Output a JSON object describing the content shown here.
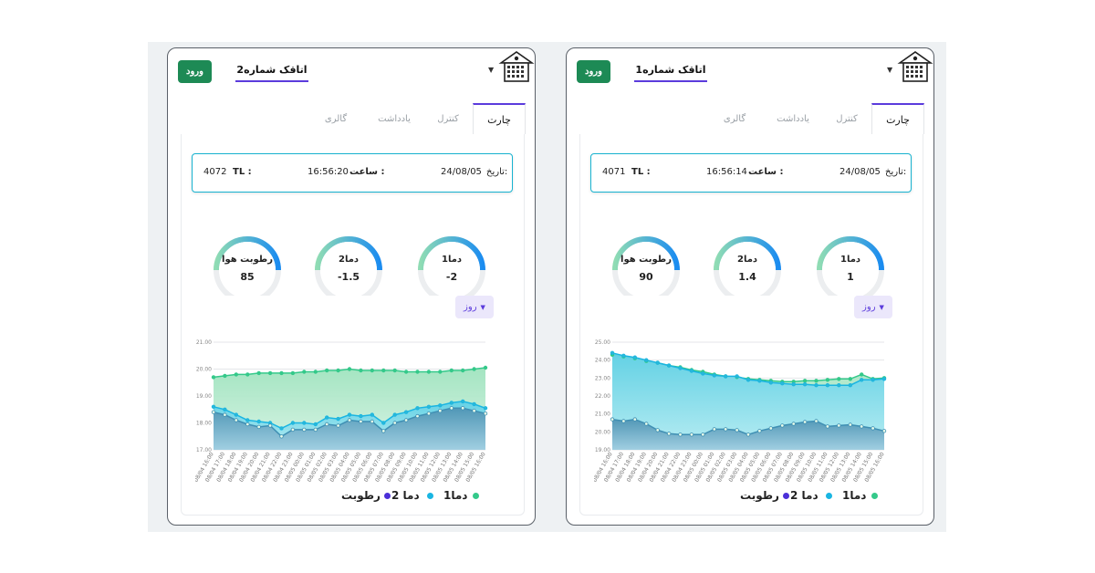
{
  "colors": {
    "brand_green": "#1d8a55",
    "accent_purple": "#5b3bdc",
    "info_border": "#17b3d0",
    "series_t1": "#34c98a",
    "series_t2": "#19b5e2",
    "series_h": "#4b2fd8",
    "gauge_start": "#8fdcb4",
    "gauge_end": "#1b8cf0"
  },
  "panels": [
    {
      "login_label": "ورود",
      "room_title": "اتاقک شماره2",
      "logo_icon": "building-logo-icon",
      "tabs": {
        "chart": "چارت",
        "control": "کنترل",
        "notes": "یادداشت",
        "gallery": "گالری"
      },
      "info": {
        "date_label": "تاریخ:",
        "date": "24/08/05",
        "time_label": "ساعت :",
        "time": "16:56:20",
        "tl_label": "TL :",
        "tl": "4072"
      },
      "gauges": [
        {
          "label": "دما1",
          "value": "-2"
        },
        {
          "label": "دما2",
          "value": "-1.5"
        },
        {
          "label": "رطوبت هوا",
          "value": "85"
        }
      ],
      "range_label": "روز",
      "legend": {
        "t1": "دما1",
        "t2": "دما 2",
        "h": "رطوبت"
      },
      "chart_data": {
        "type": "area",
        "ylim": [
          17,
          21
        ],
        "yticks": [
          "21.00",
          "20.00",
          "19.00",
          "18.00",
          "17.00"
        ],
        "x": [
          "08/04 16:00",
          "08/04 17:00",
          "08/04 18:00",
          "08/04 19:00",
          "08/04 20:00",
          "08/04 21:00",
          "08/04 22:00",
          "08/04 23:00",
          "08/05 00:00",
          "08/05 01:00",
          "08/05 02:00",
          "08/05 03:00",
          "08/05 04:00",
          "08/05 05:00",
          "08/05 06:00",
          "08/05 07:00",
          "08/05 08:00",
          "08/05 09:00",
          "08/05 10:00",
          "08/05 11:00",
          "08/05 12:00",
          "08/05 13:00",
          "08/05 14:00",
          "08/05 15:00",
          "08/05 16:00"
        ],
        "series": [
          {
            "name": "دما1",
            "values": [
              19.7,
              19.75,
              19.8,
              19.8,
              19.85,
              19.85,
              19.85,
              19.85,
              19.9,
              19.9,
              19.95,
              19.95,
              20.0,
              19.95,
              19.95,
              19.95,
              19.95,
              19.9,
              19.9,
              19.9,
              19.9,
              19.95,
              19.95,
              20.0,
              20.05
            ]
          },
          {
            "name": "دما 2",
            "values": [
              18.6,
              18.5,
              18.3,
              18.1,
              18.05,
              18.0,
              17.8,
              18.0,
              18.0,
              17.95,
              18.2,
              18.15,
              18.3,
              18.25,
              18.3,
              18.0,
              18.3,
              18.4,
              18.55,
              18.6,
              18.65,
              18.75,
              18.8,
              18.7,
              18.55
            ]
          },
          {
            "name": "رطوبت",
            "values": [
              18.4,
              18.3,
              18.1,
              17.95,
              17.85,
              17.9,
              17.5,
              17.75,
              17.75,
              17.75,
              17.95,
              17.9,
              18.1,
              18.05,
              18.05,
              17.7,
              18.0,
              18.1,
              18.25,
              18.35,
              18.45,
              18.55,
              18.55,
              18.45,
              18.35
            ]
          }
        ]
      }
    },
    {
      "login_label": "ورود",
      "room_title": "اتاقک شماره1",
      "logo_icon": "building-logo-icon",
      "tabs": {
        "chart": "چارت",
        "control": "کنترل",
        "notes": "یادداشت",
        "gallery": "گالری"
      },
      "info": {
        "date_label": "تاریخ:",
        "date": "24/08/05",
        "time_label": "ساعت :",
        "time": "16:56:14",
        "tl_label": "TL :",
        "tl": "4071"
      },
      "gauges": [
        {
          "label": "دما1",
          "value": "1"
        },
        {
          "label": "دما2",
          "value": "1.4"
        },
        {
          "label": "رطوبت هوا",
          "value": "90"
        }
      ],
      "range_label": "روز",
      "legend": {
        "t1": "دما1",
        "t2": "دما 2",
        "h": "رطوبت"
      },
      "chart_data": {
        "type": "area",
        "ylim": [
          19,
          25
        ],
        "yticks": [
          "25.00",
          "24.00",
          "23.00",
          "22.00",
          "21.00",
          "20.00",
          "19.00"
        ],
        "x": [
          "08/04 16:00",
          "08/04 17:00",
          "08/04 18:00",
          "08/04 19:00",
          "08/04 20:00",
          "08/04 21:00",
          "08/04 22:00",
          "08/04 23:00",
          "08/05 00:00",
          "08/05 01:00",
          "08/05 02:00",
          "08/05 03:00",
          "08/05 04:00",
          "08/05 05:00",
          "08/05 06:00",
          "08/05 07:00",
          "08/05 08:00",
          "08/05 09:00",
          "08/05 10:00",
          "08/05 11:00",
          "08/05 12:00",
          "08/05 13:00",
          "08/05 14:00",
          "08/05 15:00",
          "08/05 16:00"
        ],
        "series": [
          {
            "name": "دما1",
            "values": [
              24.3,
              24.2,
              24.1,
              23.95,
              23.85,
              23.7,
              23.6,
              23.45,
              23.35,
              23.2,
              23.1,
              23.05,
              22.95,
              22.9,
              22.85,
              22.8,
              22.8,
              22.85,
              22.85,
              22.9,
              22.95,
              22.95,
              23.2,
              22.95,
              23.0
            ]
          },
          {
            "name": "دما 2",
            "values": [
              24.4,
              24.25,
              24.15,
              24.0,
              23.85,
              23.7,
              23.55,
              23.4,
              23.25,
              23.15,
              23.1,
              23.1,
              22.9,
              22.85,
              22.75,
              22.7,
              22.65,
              22.65,
              22.6,
              22.6,
              22.6,
              22.6,
              22.9,
              22.9,
              22.95
            ]
          },
          {
            "name": "رطوبت",
            "values": [
              20.7,
              20.6,
              20.7,
              20.45,
              20.1,
              19.9,
              19.85,
              19.85,
              19.85,
              20.15,
              20.15,
              20.1,
              19.85,
              20.05,
              20.2,
              20.35,
              20.45,
              20.55,
              20.6,
              20.3,
              20.35,
              20.4,
              20.3,
              20.2,
              20.05
            ]
          }
        ]
      }
    }
  ]
}
